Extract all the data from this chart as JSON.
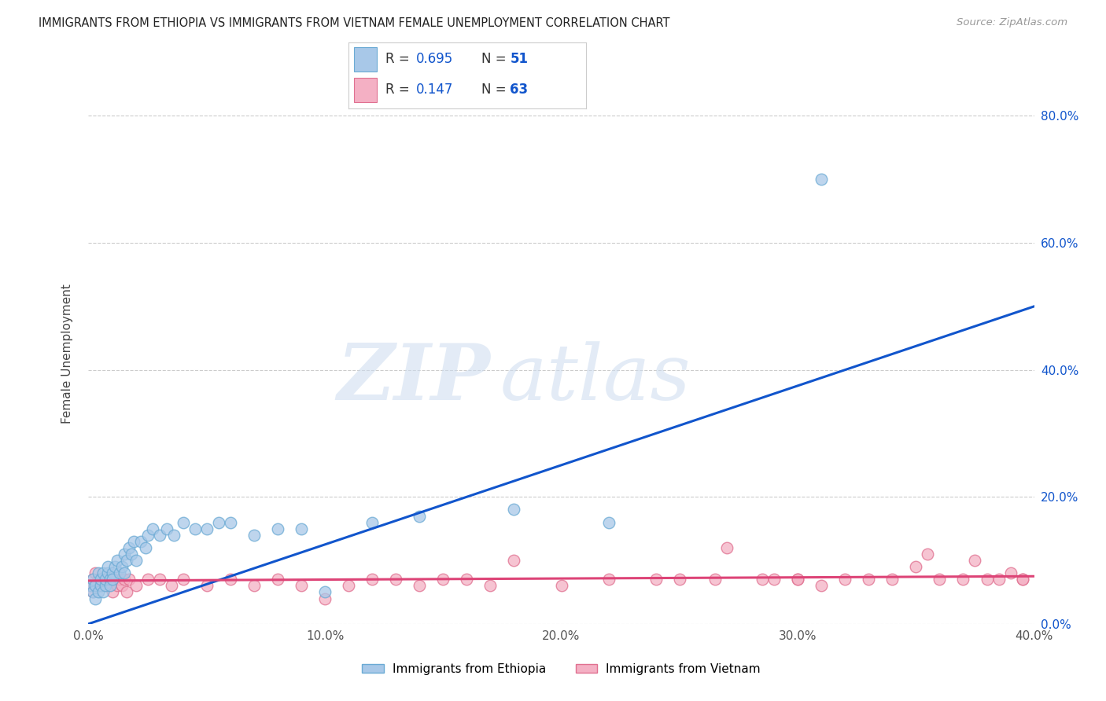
{
  "title": "IMMIGRANTS FROM ETHIOPIA VS IMMIGRANTS FROM VIETNAM FEMALE UNEMPLOYMENT CORRELATION CHART",
  "source": "Source: ZipAtlas.com",
  "ylabel": "Female Unemployment",
  "x_min": 0.0,
  "x_max": 0.4,
  "y_min": 0.0,
  "y_max": 0.85,
  "y_ticks": [
    0.0,
    0.2,
    0.4,
    0.6,
    0.8
  ],
  "x_ticks": [
    0.0,
    0.1,
    0.2,
    0.3,
    0.4
  ],
  "ethiopia_color": "#a8c8e8",
  "ethiopia_edge": "#6aaad4",
  "vietnam_color": "#f4b0c4",
  "vietnam_edge": "#e07090",
  "line_ethiopia": "#1155cc",
  "line_vietnam": "#dd4477",
  "R_ethiopia": 0.695,
  "N_ethiopia": 51,
  "R_vietnam": 0.147,
  "N_vietnam": 63,
  "legend_label_ethiopia": "Immigrants from Ethiopia",
  "legend_label_vietnam": "Immigrants from Vietnam",
  "blue_line_x0": 0.0,
  "blue_line_y0": 0.0,
  "blue_line_x1": 0.4,
  "blue_line_y1": 0.5,
  "pink_line_x0": 0.0,
  "pink_line_y0": 0.068,
  "pink_line_x1": 0.4,
  "pink_line_y1": 0.075,
  "ethiopia_x": [
    0.001,
    0.002,
    0.002,
    0.003,
    0.003,
    0.004,
    0.004,
    0.005,
    0.005,
    0.006,
    0.006,
    0.007,
    0.007,
    0.008,
    0.008,
    0.009,
    0.009,
    0.01,
    0.01,
    0.011,
    0.012,
    0.013,
    0.014,
    0.015,
    0.015,
    0.016,
    0.017,
    0.018,
    0.019,
    0.02,
    0.022,
    0.024,
    0.025,
    0.027,
    0.03,
    0.033,
    0.036,
    0.04,
    0.045,
    0.05,
    0.055,
    0.06,
    0.07,
    0.08,
    0.09,
    0.1,
    0.12,
    0.14,
    0.18,
    0.22,
    0.31
  ],
  "ethiopia_y": [
    0.06,
    0.05,
    0.07,
    0.04,
    0.06,
    0.05,
    0.08,
    0.06,
    0.07,
    0.05,
    0.08,
    0.06,
    0.07,
    0.08,
    0.09,
    0.07,
    0.06,
    0.08,
    0.07,
    0.09,
    0.1,
    0.08,
    0.09,
    0.11,
    0.08,
    0.1,
    0.12,
    0.11,
    0.13,
    0.1,
    0.13,
    0.12,
    0.14,
    0.15,
    0.14,
    0.15,
    0.14,
    0.16,
    0.15,
    0.15,
    0.16,
    0.16,
    0.14,
    0.15,
    0.15,
    0.05,
    0.16,
    0.17,
    0.18,
    0.16,
    0.7
  ],
  "vietnam_x": [
    0.001,
    0.002,
    0.002,
    0.003,
    0.003,
    0.004,
    0.005,
    0.005,
    0.006,
    0.007,
    0.008,
    0.009,
    0.01,
    0.011,
    0.012,
    0.013,
    0.014,
    0.015,
    0.016,
    0.017,
    0.02,
    0.025,
    0.03,
    0.035,
    0.04,
    0.05,
    0.06,
    0.07,
    0.08,
    0.09,
    0.1,
    0.11,
    0.12,
    0.13,
    0.14,
    0.15,
    0.16,
    0.17,
    0.18,
    0.2,
    0.22,
    0.24,
    0.25,
    0.27,
    0.29,
    0.3,
    0.31,
    0.32,
    0.33,
    0.34,
    0.35,
    0.36,
    0.37,
    0.38,
    0.385,
    0.39,
    0.395,
    0.395,
    0.375,
    0.355,
    0.3,
    0.285,
    0.265
  ],
  "vietnam_y": [
    0.06,
    0.07,
    0.05,
    0.06,
    0.08,
    0.07,
    0.06,
    0.07,
    0.06,
    0.07,
    0.06,
    0.07,
    0.05,
    0.07,
    0.06,
    0.07,
    0.06,
    0.07,
    0.05,
    0.07,
    0.06,
    0.07,
    0.07,
    0.06,
    0.07,
    0.06,
    0.07,
    0.06,
    0.07,
    0.06,
    0.04,
    0.06,
    0.07,
    0.07,
    0.06,
    0.07,
    0.07,
    0.06,
    0.1,
    0.06,
    0.07,
    0.07,
    0.07,
    0.12,
    0.07,
    0.07,
    0.06,
    0.07,
    0.07,
    0.07,
    0.09,
    0.07,
    0.07,
    0.07,
    0.07,
    0.08,
    0.07,
    0.07,
    0.1,
    0.11,
    0.07,
    0.07,
    0.07
  ]
}
